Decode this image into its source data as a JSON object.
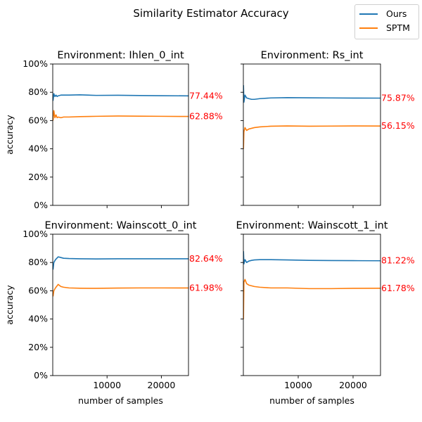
{
  "figure": {
    "title": "Similarity Estimator Accuracy"
  },
  "legend": [
    {
      "name": "Ours",
      "color": "#1f77b4"
    },
    {
      "name": "SPTM",
      "color": "#ff7f0e"
    }
  ],
  "annotation_color": "#ff0000",
  "chart_data": [
    {
      "type": "line",
      "title": "Environment: Ihlen_0_int",
      "xlabel": "",
      "ylabel": "accuracy",
      "xlim": [
        0,
        25000
      ],
      "ylim": [
        0,
        1
      ],
      "xticks": [
        10000,
        20000
      ],
      "xticklabels": [
        "",
        ""
      ],
      "yticks": [
        0,
        0.2,
        0.4,
        0.6,
        0.8,
        1.0
      ],
      "yticklabels": [
        "0%",
        "20%",
        "40%",
        "60%",
        "80%",
        "100%"
      ],
      "series": [
        {
          "name": "Ours",
          "color": "#1f77b4",
          "x": [
            50,
            200,
            400,
            600,
            800,
            1000,
            1500,
            2000,
            3000,
            5000,
            8000,
            12000,
            16000,
            20000,
            25000
          ],
          "y": [
            0.74,
            0.79,
            0.77,
            0.78,
            0.77,
            0.775,
            0.78,
            0.78,
            0.78,
            0.782,
            0.778,
            0.779,
            0.777,
            0.776,
            0.7744
          ],
          "final_label": "77.44%",
          "final_value": 0.7744
        },
        {
          "name": "SPTM",
          "color": "#ff7f0e",
          "x": [
            50,
            200,
            400,
            600,
            800,
            1000,
            1500,
            2000,
            3000,
            5000,
            8000,
            12000,
            16000,
            20000,
            25000
          ],
          "y": [
            0.6,
            0.67,
            0.62,
            0.64,
            0.62,
            0.625,
            0.62,
            0.625,
            0.625,
            0.628,
            0.63,
            0.632,
            0.631,
            0.63,
            0.6288
          ],
          "final_label": "62.88%",
          "final_value": 0.6288
        }
      ]
    },
    {
      "type": "line",
      "title": "Environment: Rs_int",
      "xlabel": "",
      "ylabel": "",
      "xlim": [
        0,
        25000
      ],
      "ylim": [
        0,
        1
      ],
      "xticks": [
        10000,
        20000
      ],
      "xticklabels": [
        "",
        ""
      ],
      "yticks": [
        0,
        0.2,
        0.4,
        0.6,
        0.8,
        1.0
      ],
      "yticklabels": [
        "",
        "",
        "",
        "",
        "",
        ""
      ],
      "series": [
        {
          "name": "Ours",
          "color": "#1f77b4",
          "x": [
            20,
            100,
            300,
            600,
            1000,
            1500,
            2000,
            3000,
            5000,
            8000,
            12000,
            16000,
            20000,
            25000
          ],
          "y": [
            0.85,
            0.73,
            0.78,
            0.76,
            0.755,
            0.75,
            0.75,
            0.755,
            0.76,
            0.762,
            0.761,
            0.76,
            0.759,
            0.7587
          ],
          "final_label": "75.87%",
          "final_value": 0.7587
        },
        {
          "name": "SPTM",
          "color": "#ff7f0e",
          "x": [
            20,
            100,
            300,
            600,
            1000,
            1500,
            2000,
            3000,
            5000,
            8000,
            12000,
            16000,
            20000,
            25000
          ],
          "y": [
            0.4,
            0.52,
            0.55,
            0.53,
            0.54,
            0.545,
            0.55,
            0.555,
            0.56,
            0.562,
            0.56,
            0.561,
            0.562,
            0.5615
          ],
          "final_label": "56.15%",
          "final_value": 0.5615
        }
      ]
    },
    {
      "type": "line",
      "title": "Environment: Wainscott_0_int",
      "xlabel": "number of samples",
      "ylabel": "accuracy",
      "xlim": [
        0,
        25000
      ],
      "ylim": [
        0,
        1
      ],
      "xticks": [
        10000,
        20000
      ],
      "xticklabels": [
        "10000",
        "20000"
      ],
      "yticks": [
        0,
        0.2,
        0.4,
        0.6,
        0.8,
        1.0
      ],
      "yticklabels": [
        "0%",
        "20%",
        "40%",
        "60%",
        "80%",
        "100%"
      ],
      "series": [
        {
          "name": "Ours",
          "color": "#1f77b4",
          "x": [
            50,
            200,
            500,
            1000,
            1500,
            2000,
            3000,
            5000,
            8000,
            12000,
            16000,
            20000,
            25000
          ],
          "y": [
            0.75,
            0.8,
            0.82,
            0.84,
            0.835,
            0.83,
            0.828,
            0.826,
            0.825,
            0.826,
            0.826,
            0.826,
            0.8264
          ],
          "final_label": "82.64%",
          "final_value": 0.8264
        },
        {
          "name": "SPTM",
          "color": "#ff7f0e",
          "x": [
            50,
            200,
            500,
            1000,
            1500,
            2000,
            3000,
            5000,
            8000,
            12000,
            16000,
            20000,
            25000
          ],
          "y": [
            0.56,
            0.6,
            0.62,
            0.645,
            0.63,
            0.625,
            0.62,
            0.618,
            0.617,
            0.619,
            0.62,
            0.62,
            0.6198
          ],
          "final_label": "61.98%",
          "final_value": 0.6198
        }
      ]
    },
    {
      "type": "line",
      "title": "Environment: Wainscott_1_int",
      "xlabel": "number of samples",
      "ylabel": "",
      "xlim": [
        0,
        25000
      ],
      "ylim": [
        0,
        1
      ],
      "xticks": [
        10000,
        20000
      ],
      "xticklabels": [
        "10000",
        "20000"
      ],
      "yticks": [
        0,
        0.2,
        0.4,
        0.6,
        0.8,
        1.0
      ],
      "yticklabels": [
        "",
        "",
        "",
        "",
        "",
        ""
      ],
      "series": [
        {
          "name": "Ours",
          "color": "#1f77b4",
          "x": [
            20,
            100,
            300,
            600,
            1000,
            1500,
            2000,
            3000,
            5000,
            8000,
            12000,
            16000,
            20000,
            25000
          ],
          "y": [
            0.88,
            0.79,
            0.82,
            0.8,
            0.81,
            0.815,
            0.818,
            0.82,
            0.82,
            0.818,
            0.815,
            0.814,
            0.813,
            0.8122
          ],
          "final_label": "81.22%",
          "final_value": 0.8122
        },
        {
          "name": "SPTM",
          "color": "#ff7f0e",
          "x": [
            20,
            100,
            300,
            600,
            1000,
            1500,
            2000,
            3000,
            5000,
            8000,
            12000,
            16000,
            20000,
            25000
          ],
          "y": [
            0.4,
            0.66,
            0.68,
            0.65,
            0.64,
            0.635,
            0.63,
            0.625,
            0.62,
            0.62,
            0.615,
            0.615,
            0.617,
            0.6178
          ],
          "final_label": "61.78%",
          "final_value": 0.6178
        }
      ]
    }
  ]
}
